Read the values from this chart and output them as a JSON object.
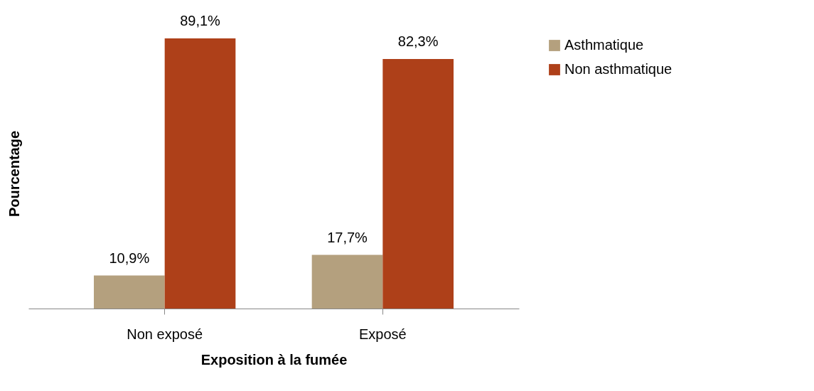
{
  "chart_data": {
    "type": "bar",
    "xlabel": "Exposition à la fumée",
    "ylabel": "Pourcentage",
    "categories": [
      "Non exposé",
      "Exposé"
    ],
    "series": [
      {
        "name": "Asthmatique",
        "color": "#b4a07e",
        "values": [
          10.9,
          17.7
        ],
        "value_labels": [
          "10,9%",
          "17,7%"
        ]
      },
      {
        "name": "Non asthmatique",
        "color": "#ae4019",
        "values": [
          89.1,
          82.3
        ],
        "value_labels": [
          "89,1%",
          "82,3%"
        ]
      }
    ],
    "legend": "right",
    "grid": false
  }
}
